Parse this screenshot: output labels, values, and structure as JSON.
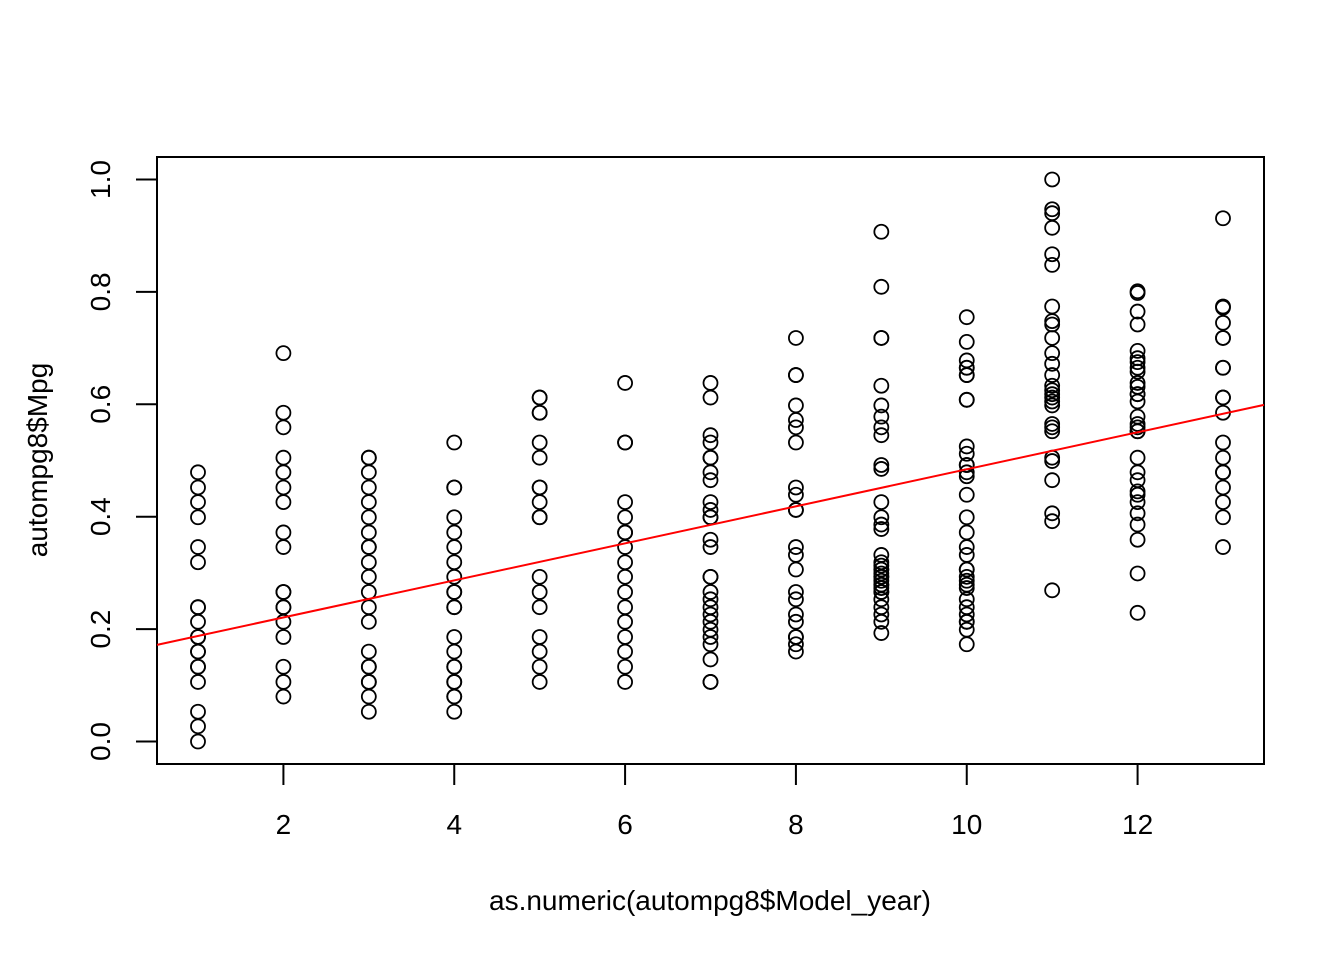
{
  "chart_data": {
    "type": "scatter",
    "title": "",
    "xlabel": "as.numeric(autompg8$Model_year)",
    "ylabel": "autompg8$Mpg",
    "xlim": [
      0.52,
      13.48
    ],
    "ylim": [
      -0.04,
      1.04
    ],
    "xticks": [
      2,
      4,
      6,
      8,
      10,
      12
    ],
    "yticks": [
      0.0,
      0.2,
      0.4,
      0.6,
      0.8,
      1.0
    ],
    "xtick_labels": [
      "2",
      "4",
      "6",
      "8",
      "10",
      "12"
    ],
    "ytick_labels": [
      "0.0",
      "0.2",
      "0.4",
      "0.6",
      "0.8",
      "1.0"
    ],
    "grid": false,
    "legend": null,
    "point_color": "#000000",
    "fit_line_color": "#ff0000",
    "series": [
      {
        "x": [
          1,
          1,
          1,
          1,
          1,
          1,
          1,
          1,
          1,
          1,
          1,
          1,
          1,
          1,
          1,
          1,
          1,
          1,
          1,
          2,
          2,
          2,
          2,
          2,
          2,
          2,
          2,
          2,
          2,
          2,
          2,
          2,
          2,
          2,
          2,
          2,
          2,
          3,
          3,
          3,
          3,
          3,
          3,
          3,
          3,
          3,
          3,
          3,
          3,
          3,
          3,
          3,
          3,
          3,
          3,
          3,
          3,
          3,
          4,
          4,
          4,
          4,
          4,
          4,
          4,
          4,
          4,
          4,
          4,
          4,
          4,
          4,
          4,
          4,
          4,
          4,
          4,
          4,
          4,
          5,
          5,
          5,
          5,
          5,
          5,
          5,
          5,
          5,
          5,
          5,
          5,
          5,
          5,
          5,
          5,
          5,
          5,
          6,
          6,
          6,
          6,
          6,
          6,
          6,
          6,
          6,
          6,
          6,
          6,
          6,
          6,
          6,
          6,
          6,
          7,
          7,
          7,
          7,
          7,
          7,
          7,
          7,
          7,
          7,
          7,
          7,
          7,
          7,
          7,
          7,
          7,
          7,
          7,
          7,
          7,
          7,
          7,
          7,
          7,
          7,
          7,
          8,
          8,
          8,
          8,
          8,
          8,
          8,
          8,
          8,
          8,
          8,
          8,
          8,
          8,
          8,
          8,
          8,
          8,
          8,
          8,
          8,
          8,
          9,
          9,
          9,
          9,
          9,
          9,
          9,
          9,
          9,
          9,
          9,
          9,
          9,
          9,
          9,
          9,
          9,
          9,
          9,
          9,
          9,
          9,
          9,
          9,
          9,
          9,
          9,
          9,
          9,
          9,
          9,
          9,
          9,
          9,
          10,
          10,
          10,
          10,
          10,
          10,
          10,
          10,
          10,
          10,
          10,
          10,
          10,
          10,
          10,
          10,
          10,
          10,
          10,
          10,
          10,
          10,
          10,
          10,
          10,
          10,
          10,
          10,
          10,
          10,
          10,
          10,
          10,
          11,
          11,
          11,
          11,
          11,
          11,
          11,
          11,
          11,
          11,
          11,
          11,
          11,
          11,
          11,
          11,
          11,
          11,
          11,
          11,
          11,
          11,
          11,
          11,
          11,
          11,
          11,
          11,
          12,
          12,
          12,
          12,
          12,
          12,
          12,
          12,
          12,
          12,
          12,
          12,
          12,
          12,
          12,
          12,
          12,
          12,
          12,
          12,
          12,
          12,
          12,
          12,
          12,
          12,
          12,
          12,
          12,
          12,
          13,
          13,
          13,
          13,
          13,
          13,
          13,
          13,
          13,
          13,
          13,
          13,
          13,
          13,
          13,
          13,
          13,
          13,
          13
        ],
        "y": [
          0.479,
          0.452,
          0.426,
          0.399,
          0.346,
          0.319,
          0.239,
          0.213,
          0.186,
          0.16,
          0.239,
          0.16,
          0.133,
          0.133,
          0.106,
          0.053,
          0.027,
          0.0,
          0.186,
          0.691,
          0.585,
          0.559,
          0.505,
          0.479,
          0.452,
          0.426,
          0.372,
          0.346,
          0.266,
          0.266,
          0.239,
          0.239,
          0.213,
          0.186,
          0.133,
          0.106,
          0.08,
          0.505,
          0.505,
          0.479,
          0.452,
          0.426,
          0.399,
          0.372,
          0.346,
          0.346,
          0.319,
          0.293,
          0.266,
          0.239,
          0.213,
          0.16,
          0.133,
          0.133,
          0.106,
          0.106,
          0.08,
          0.053,
          0.532,
          0.452,
          0.452,
          0.399,
          0.372,
          0.346,
          0.319,
          0.293,
          0.266,
          0.266,
          0.239,
          0.239,
          0.186,
          0.16,
          0.133,
          0.133,
          0.106,
          0.106,
          0.08,
          0.08,
          0.053,
          0.612,
          0.612,
          0.585,
          0.585,
          0.532,
          0.505,
          0.452,
          0.452,
          0.426,
          0.399,
          0.399,
          0.293,
          0.266,
          0.239,
          0.186,
          0.16,
          0.133,
          0.106,
          0.638,
          0.532,
          0.532,
          0.426,
          0.399,
          0.372,
          0.372,
          0.346,
          0.319,
          0.293,
          0.266,
          0.239,
          0.213,
          0.186,
          0.16,
          0.133,
          0.106,
          0.638,
          0.612,
          0.545,
          0.532,
          0.505,
          0.505,
          0.479,
          0.465,
          0.426,
          0.412,
          0.399,
          0.359,
          0.346,
          0.293,
          0.293,
          0.266,
          0.253,
          0.239,
          0.226,
          0.213,
          0.199,
          0.186,
          0.173,
          0.146,
          0.106,
          0.106,
          0.399,
          0.718,
          0.652,
          0.652,
          0.598,
          0.572,
          0.559,
          0.532,
          0.452,
          0.439,
          0.412,
          0.346,
          0.332,
          0.306,
          0.266,
          0.253,
          0.226,
          0.213,
          0.186,
          0.186,
          0.173,
          0.16,
          0.412,
          0.907,
          0.809,
          0.718,
          0.718,
          0.633,
          0.598,
          0.578,
          0.559,
          0.545,
          0.492,
          0.485,
          0.426,
          0.399,
          0.386,
          0.378,
          0.332,
          0.319,
          0.313,
          0.306,
          0.299,
          0.293,
          0.286,
          0.279,
          0.273,
          0.266,
          0.253,
          0.239,
          0.226,
          0.213,
          0.193,
          0.306,
          0.293,
          0.279,
          0.266,
          0.755,
          0.711,
          0.678,
          0.665,
          0.652,
          0.608,
          0.608,
          0.525,
          0.512,
          0.492,
          0.479,
          0.472,
          0.439,
          0.399,
          0.372,
          0.346,
          0.332,
          0.306,
          0.293,
          0.286,
          0.273,
          0.253,
          0.239,
          0.226,
          0.213,
          0.199,
          0.173,
          0.665,
          0.652,
          0.492,
          0.306,
          0.279,
          0.213,
          1.0,
          0.947,
          0.94,
          0.914,
          0.867,
          0.848,
          0.774,
          0.748,
          0.742,
          0.718,
          0.691,
          0.672,
          0.652,
          0.633,
          0.625,
          0.618,
          0.612,
          0.605,
          0.598,
          0.565,
          0.559,
          0.552,
          0.505,
          0.499,
          0.465,
          0.406,
          0.392,
          0.269,
          0.801,
          0.798,
          0.765,
          0.742,
          0.695,
          0.682,
          0.675,
          0.665,
          0.658,
          0.638,
          0.631,
          0.618,
          0.605,
          0.578,
          0.565,
          0.559,
          0.552,
          0.505,
          0.479,
          0.465,
          0.445,
          0.439,
          0.426,
          0.406,
          0.386,
          0.359,
          0.299,
          0.229,
          0.618,
          0.552,
          0.931,
          0.774,
          0.772,
          0.745,
          0.718,
          0.718,
          0.665,
          0.665,
          0.612,
          0.612,
          0.585,
          0.532,
          0.505,
          0.479,
          0.479,
          0.452,
          0.426,
          0.399,
          0.346
        ]
      }
    ],
    "fit_line": {
      "x": [
        0.52,
        13.48
      ],
      "y": [
        0.172,
        0.599
      ]
    }
  }
}
